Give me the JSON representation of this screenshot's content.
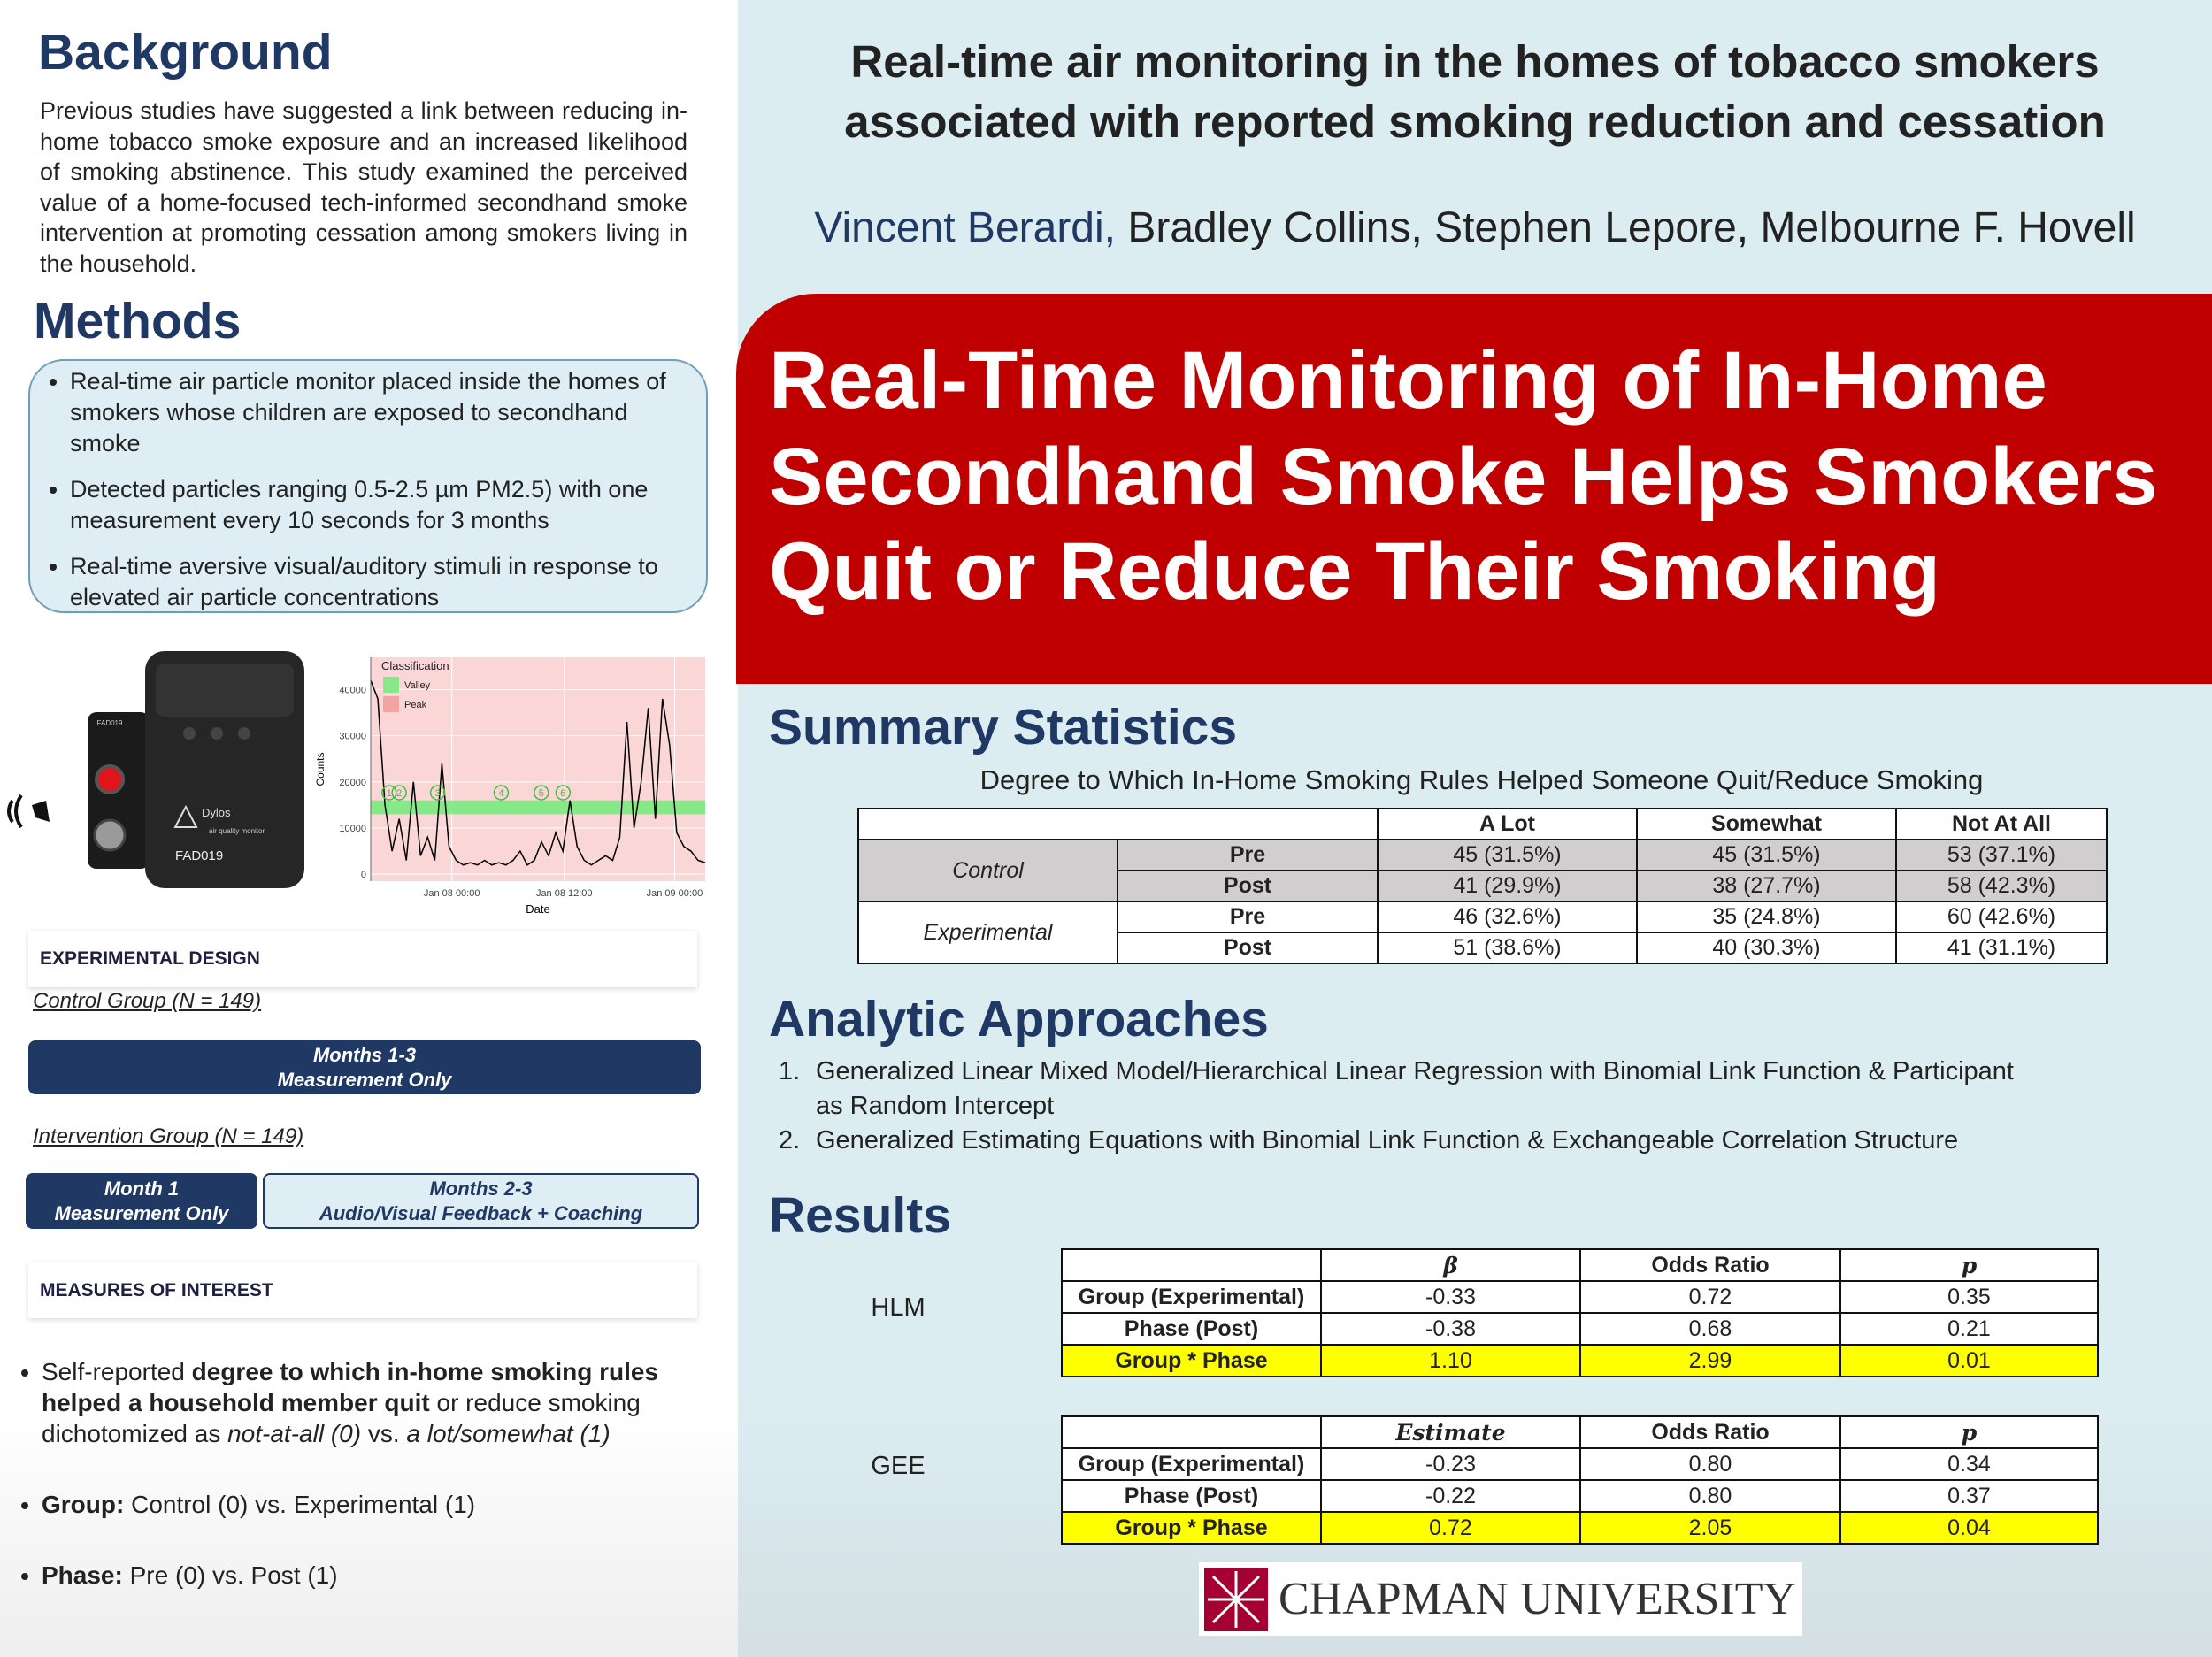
{
  "background": {
    "heading": "Background",
    "text": "Previous studies have suggested a link between reducing in-home tobacco smoke exposure and an increased likelihood of smoking abstinence. This study examined the perceived value of a home-focused tech-informed secondhand smoke intervention at promoting cessation among smokers living in the household."
  },
  "methods": {
    "heading": "Methods",
    "bullets": [
      "Real-time air particle monitor placed inside the homes of smokers whose children are exposed to secondhand smoke",
      "Detected particles ranging 0.5-2.5 µm PM2.5) with one measurement every 10 seconds for 3 months",
      "Real-time aversive visual/auditory stimuli in response to elevated air particle concentrations"
    ]
  },
  "device": {
    "brand": "Dylos",
    "subtitle": "air quality monitor",
    "id": "FAD019"
  },
  "air_chart": {
    "type": "line",
    "y_label": "Counts",
    "x_label": "Date",
    "legend_title": "Classification",
    "legend": [
      {
        "name": "Valley",
        "color": "#86e886"
      },
      {
        "name": "Peak",
        "color": "#f4a3a3"
      }
    ],
    "valley_band": [
      13000,
      16000
    ],
    "phases": [
      "1",
      "2",
      "3",
      "4",
      "5",
      "6"
    ],
    "values": [
      42000,
      38000,
      15000,
      5000,
      12000,
      3000,
      20000,
      4000,
      8000,
      3000,
      24000,
      6000,
      3000,
      2000,
      2500,
      2000,
      3000,
      2000,
      2500,
      2000,
      3000,
      5000,
      2000,
      3000,
      7000,
      4000,
      9000,
      5000,
      16000,
      6000,
      3000,
      2000,
      3000,
      4000,
      3000,
      8000,
      33000,
      10000,
      20000,
      36000,
      12000,
      38000,
      28000,
      9000,
      6000,
      5000,
      3000,
      2500
    ],
    "color": "#000000",
    "xlim": [
      0,
      47
    ],
    "ylim": [
      -1500,
      47000
    ],
    "yticks": [
      0,
      10000,
      20000,
      30000,
      40000
    ],
    "xticks": [
      {
        "value": 11.4,
        "label": "Jan 08 00:00"
      },
      {
        "value": 27.2,
        "label": "Jan 08 12:00"
      },
      {
        "value": 42.7,
        "label": "Jan 09 00:00"
      }
    ]
  },
  "experimental_design": {
    "heading": "EXPERIMENTAL DESIGN",
    "control_label": "Control Group (N = 149)",
    "control_bar": [
      "Months 1-3",
      "Measurement Only"
    ],
    "intervention_label": "Intervention Group (N = 149)",
    "intervention_bars": [
      [
        "Month 1",
        "Measurement Only"
      ],
      [
        "Months 2-3",
        "Audio/Visual Feedback + Coaching"
      ]
    ]
  },
  "measures": {
    "heading": "MEASURES OF INTEREST",
    "items": [
      [
        {
          "text": "Self-reported ",
          "style": "normal"
        },
        {
          "text": "degree to which in-home smoking rules helped a household member quit",
          "style": "bold"
        },
        {
          "text": " or reduce smoking dichotomized as ",
          "style": "normal"
        },
        {
          "text": "not-at-all (0)",
          "style": "italic"
        },
        {
          "text": " vs. ",
          "style": "normal"
        },
        {
          "text": "a lot/somewhat (1)",
          "style": "italic"
        }
      ],
      [
        {
          "text": "Group:",
          "style": "bold"
        },
        {
          "text": " Control (0) vs. Experimental (1)",
          "style": "normal"
        }
      ],
      [
        {
          "text": "Phase:",
          "style": "bold"
        },
        {
          "text": " Pre (0) vs. Post (1)",
          "style": "normal"
        }
      ]
    ]
  },
  "header": {
    "title": [
      "Real-time air monitoring in the homes of tobacco smokers",
      "associated with reported smoking reduction and cessation"
    ],
    "lead_author": "Vincent Berardi,",
    "coauthors": "Bradley Collins, Stephen Lepore, Melbourne F. Hovell"
  },
  "banner": {
    "lines": [
      "Real-Time Monitoring of In-Home",
      "Secondhand Smoke Helps Smokers",
      "Quit or Reduce Their Smoking"
    ]
  },
  "summary": {
    "heading": "Summary Statistics",
    "caption": "Degree to Which In-Home Smoking Rules Helped Someone Quit/Reduce Smoking",
    "columns": [
      "A  Lot",
      "Somewhat",
      "Not At All"
    ],
    "groups": [
      {
        "name": "Control",
        "rows": [
          {
            "phase": "Pre",
            "cells": [
              "45 (31.5%)",
              "45 (31.5%)",
              "53 (37.1%)"
            ]
          },
          {
            "phase": "Post",
            "cells": [
              "41 (29.9%)",
              "38 (27.7%)",
              "58 (42.3%)"
            ]
          }
        ]
      },
      {
        "name": "Experimental",
        "rows": [
          {
            "phase": "Pre",
            "cells": [
              "46 (32.6%)",
              "35 (24.8%)",
              "60 (42.6%)"
            ]
          },
          {
            "phase": "Post",
            "cells": [
              "51 (38.6%)",
              "40 (30.3%)",
              "41 (31.1%)"
            ]
          }
        ]
      }
    ]
  },
  "analytic": {
    "heading": "Analytic Approaches",
    "items": [
      {
        "number": "1.",
        "text": "Generalized Linear Mixed Model/Hierarchical Linear Regression with Binomial Link Function & Participant as Random Intercept"
      },
      {
        "number": "2.",
        "text": "Generalized Estimating Equations with Binomial Link Function & Exchangeable Correlation Structure"
      }
    ]
  },
  "results": {
    "heading": "Results",
    "tables": [
      {
        "label": "HLM",
        "columns": [
          "β",
          "Odds Ratio",
          "p"
        ],
        "rows": [
          {
            "name": "Group (Experimental)",
            "cells": [
              "-0.33",
              "0.72",
              "0.35"
            ],
            "highlight": false
          },
          {
            "name": "Phase (Post)",
            "cells": [
              "-0.38",
              "0.68",
              "0.21"
            ],
            "highlight": false
          },
          {
            "name": "Group * Phase",
            "cells": [
              "1.10",
              "2.99",
              "0.01"
            ],
            "highlight": true
          }
        ]
      },
      {
        "label": "GEE",
        "columns": [
          "Estimate",
          "Odds Ratio",
          "p"
        ],
        "rows": [
          {
            "name": "Group (Experimental)",
            "cells": [
              "-0.23",
              "0.80",
              "0.34"
            ],
            "highlight": false
          },
          {
            "name": "Phase (Post)",
            "cells": [
              "-0.22",
              "0.80",
              "0.37"
            ],
            "highlight": false
          },
          {
            "name": "Group * Phase",
            "cells": [
              "0.72",
              "2.05",
              "0.04"
            ],
            "highlight": true
          }
        ]
      }
    ]
  },
  "logo": {
    "text": "CHAPMAN UNIVERSITY"
  }
}
